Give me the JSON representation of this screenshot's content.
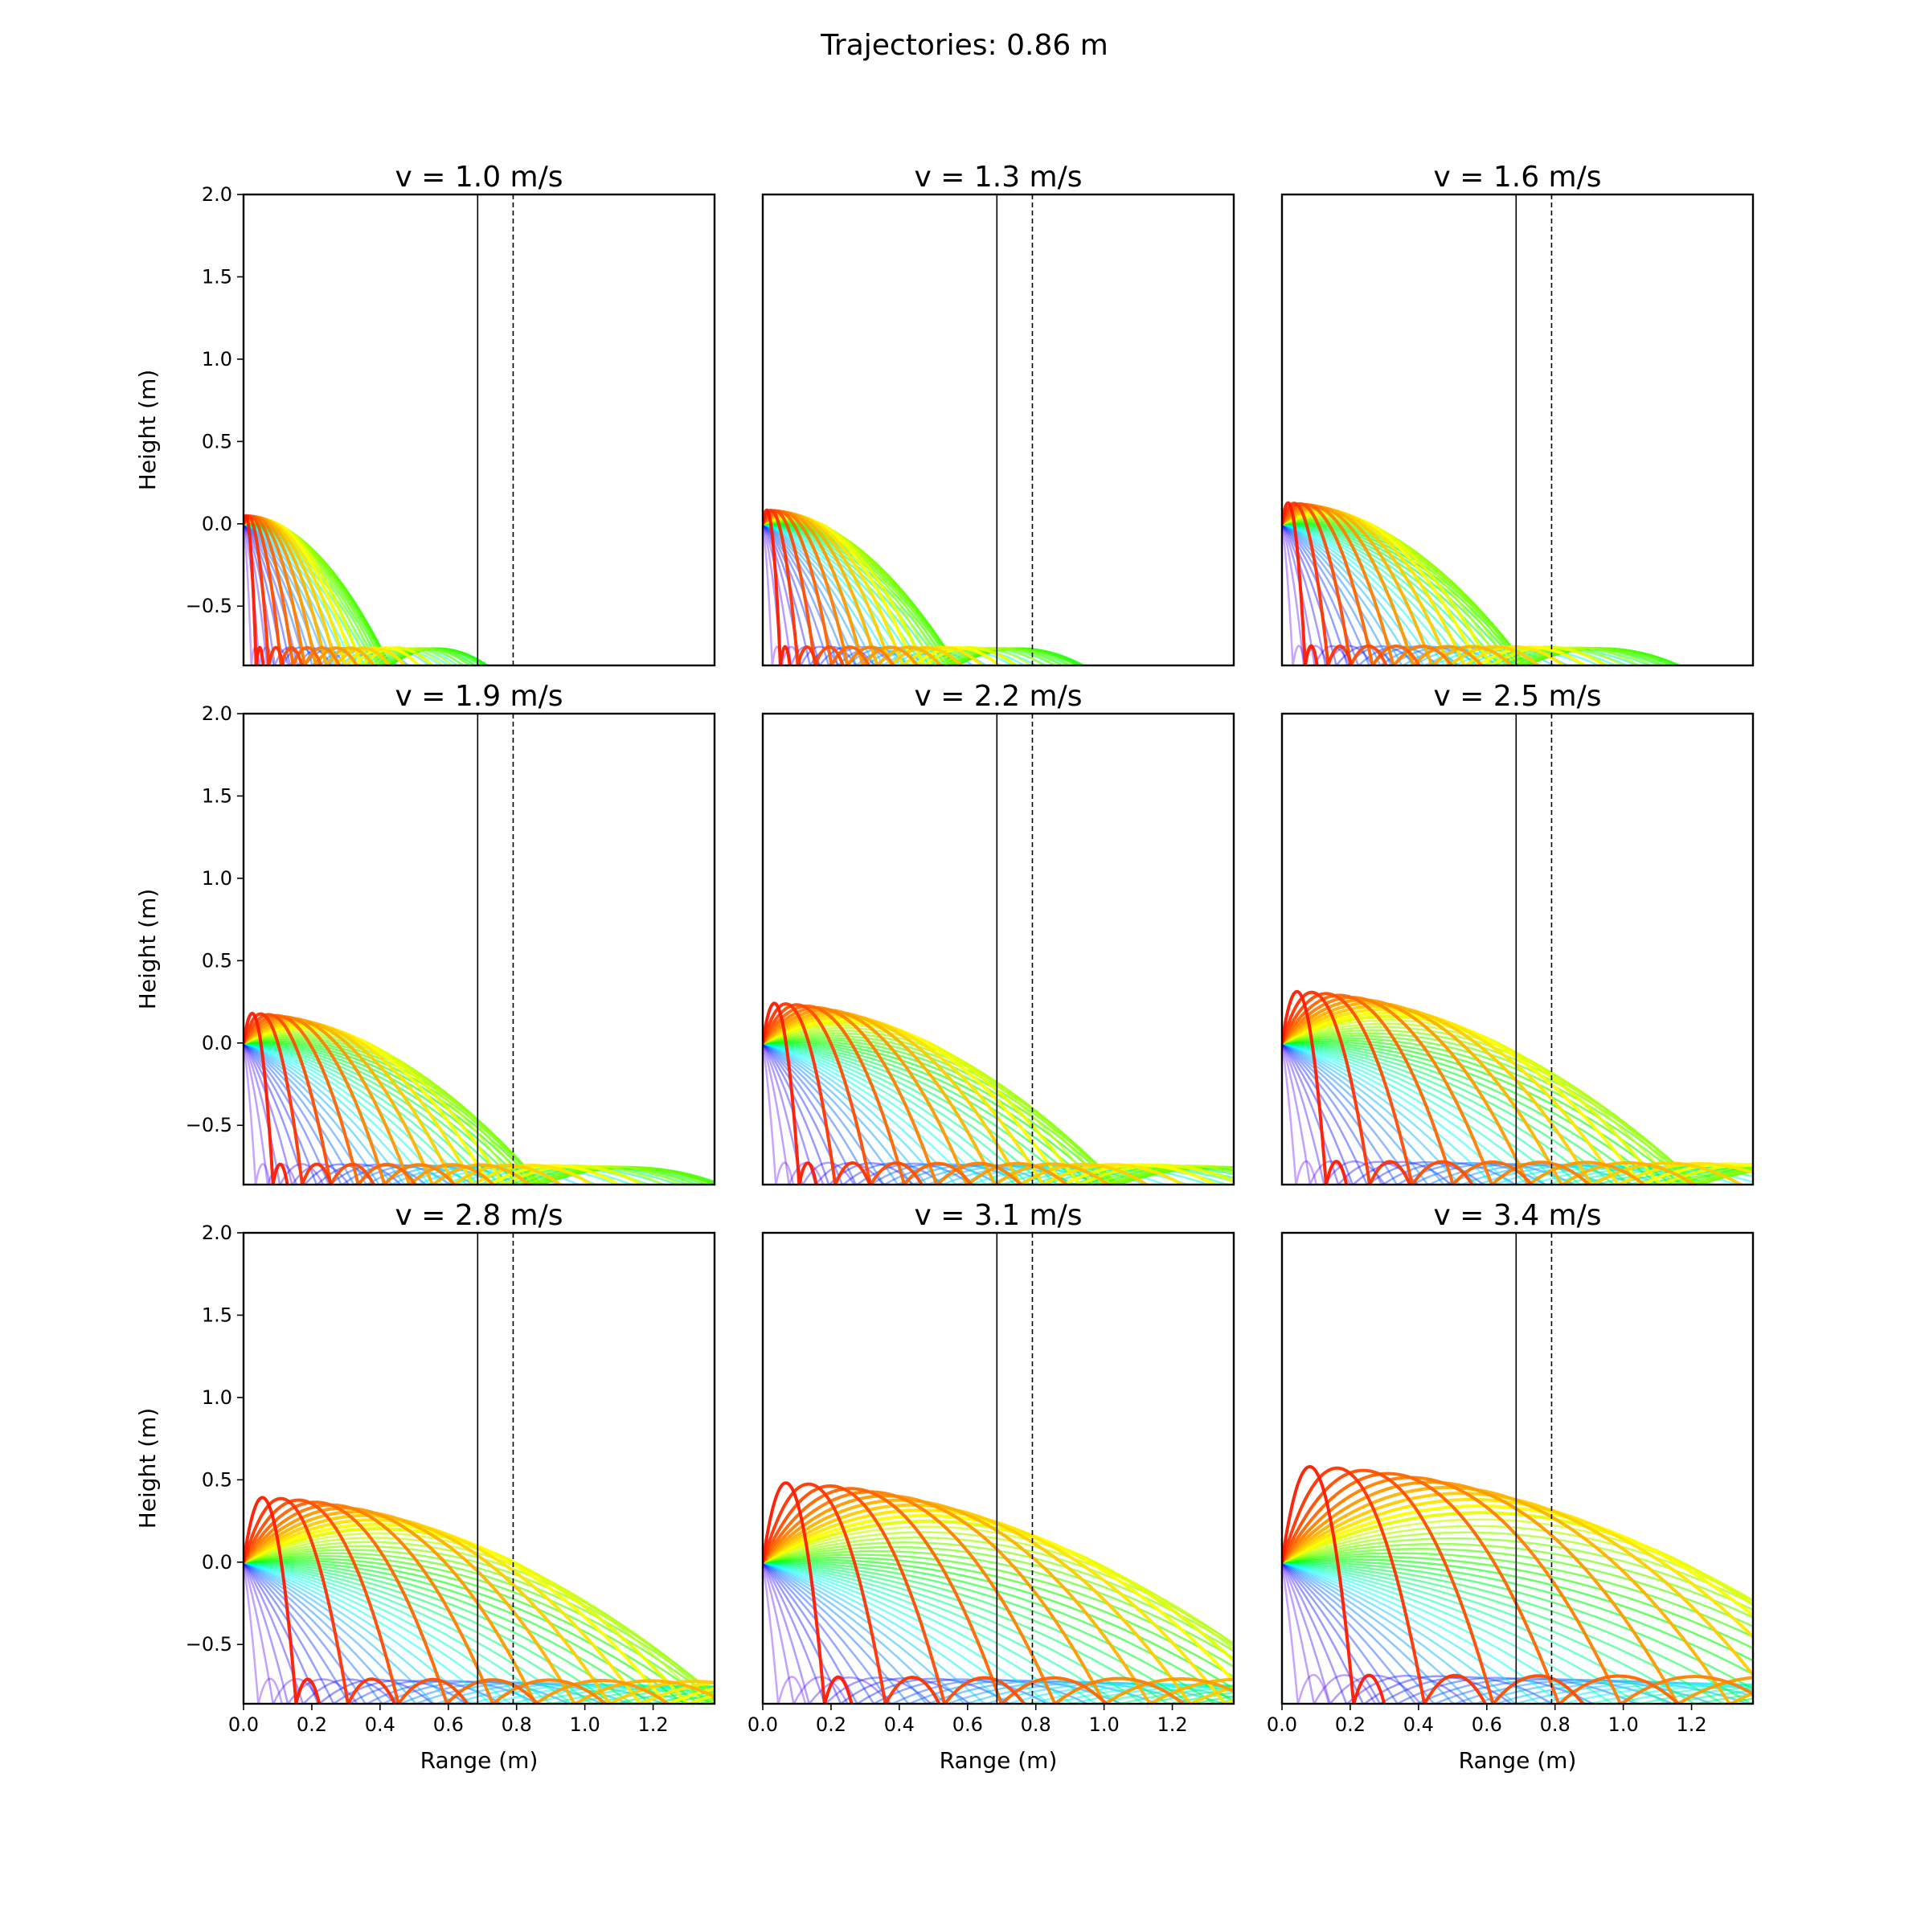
{
  "figure": {
    "title": "Trajectories: 0.86 m"
  },
  "chart_data": {
    "type": "line",
    "title": "Trajectories: 0.86 m",
    "xlabel": "Range (m)",
    "ylabel": "Height (m)",
    "xlim": [
      0,
      1.38
    ],
    "ylim": [
      -0.86,
      2.0
    ],
    "x_ticks": [
      "0.0",
      "0.2",
      "0.4",
      "0.6",
      "0.8",
      "1.0",
      "1.2"
    ],
    "y_ticks": [
      "2.0",
      "1.5",
      "1.0",
      "0.5",
      "0.0",
      "−0.5"
    ],
    "reference_lines": [
      {
        "style": "solid",
        "x": 0.686
      },
      {
        "style": "dashed",
        "x": 0.79
      }
    ],
    "launch_angle_range_deg": [
      -90,
      90
    ],
    "floor_height": -0.86,
    "colormap": "rainbow (violet for low/negative launch angles → red for high launch angles)",
    "panels": [
      {
        "title": "v = 1.0 m/s",
        "speed": 1.0
      },
      {
        "title": "v = 1.3 m/s",
        "speed": 1.3
      },
      {
        "title": "v = 1.6 m/s",
        "speed": 1.6
      },
      {
        "title": "v = 1.9 m/s",
        "speed": 1.9
      },
      {
        "title": "v = 2.2 m/s",
        "speed": 2.2
      },
      {
        "title": "v = 2.5 m/s",
        "speed": 2.5
      },
      {
        "title": "v = 2.8 m/s",
        "speed": 2.8
      },
      {
        "title": "v = 3.1 m/s",
        "speed": 3.1
      },
      {
        "title": "v = 3.4 m/s",
        "speed": 3.4
      }
    ]
  }
}
